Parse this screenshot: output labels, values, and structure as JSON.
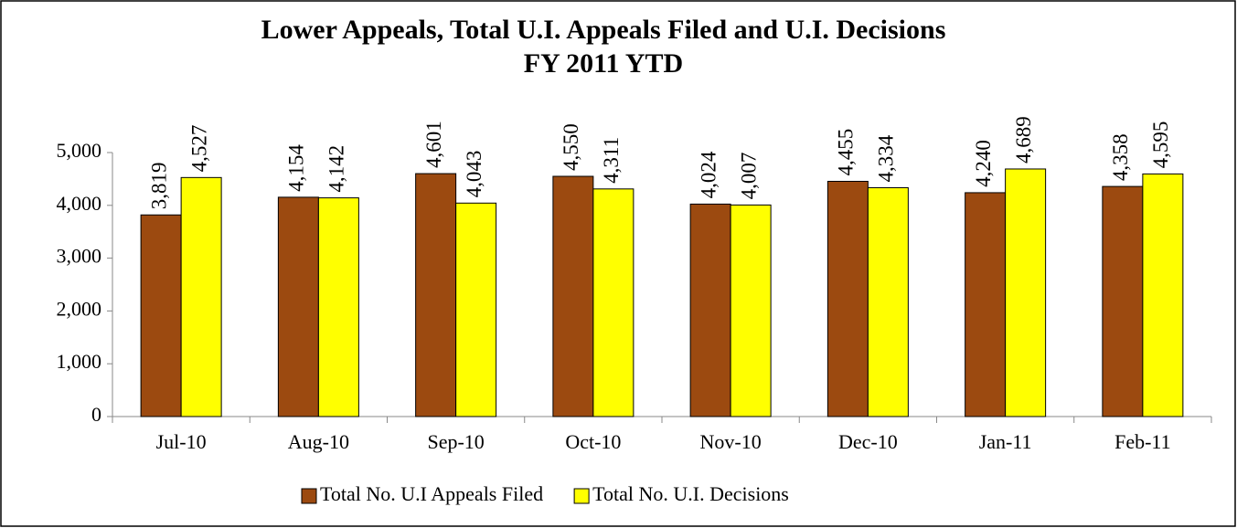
{
  "chart_data": {
    "type": "bar",
    "title": "Lower Appeals, Total U.I. Appeals Filed and U.I. Decisions",
    "subtitle": "FY 2011 YTD",
    "categories": [
      "Jul-10",
      "Aug-10",
      "Sep-10",
      "Oct-10",
      "Nov-10",
      "Dec-10",
      "Jan-11",
      "Feb-11"
    ],
    "series": [
      {
        "name": "Total No. U.I Appeals Filed",
        "color": "#9c4a10",
        "values": [
          3819,
          4154,
          4601,
          4550,
          4024,
          4455,
          4240,
          4358
        ],
        "value_labels": [
          "3,819",
          "4,154",
          "4,601",
          "4,550",
          "4,024",
          "4,455",
          "4,240",
          "4,358"
        ]
      },
      {
        "name": "Total No. U.I. Decisions",
        "color": "#ffff00",
        "values": [
          4527,
          4142,
          4043,
          4311,
          4007,
          4334,
          4689,
          4595
        ],
        "value_labels": [
          "4,527",
          "4,142",
          "4,043",
          "4,311",
          "4,007",
          "4,334",
          "4,689",
          "4,595"
        ]
      }
    ],
    "ylim": [
      0,
      5000
    ],
    "yticks": [
      0,
      {
        "value": 1000,
        "label": "1,000"
      },
      {
        "value": 2000,
        "label": "2,000"
      },
      {
        "value": 3000,
        "label": "3,000"
      },
      {
        "value": 4000,
        "label": "4,000"
      },
      {
        "value": 5000,
        "label": "5,000"
      }
    ],
    "grid": false,
    "legend": "bottom"
  }
}
